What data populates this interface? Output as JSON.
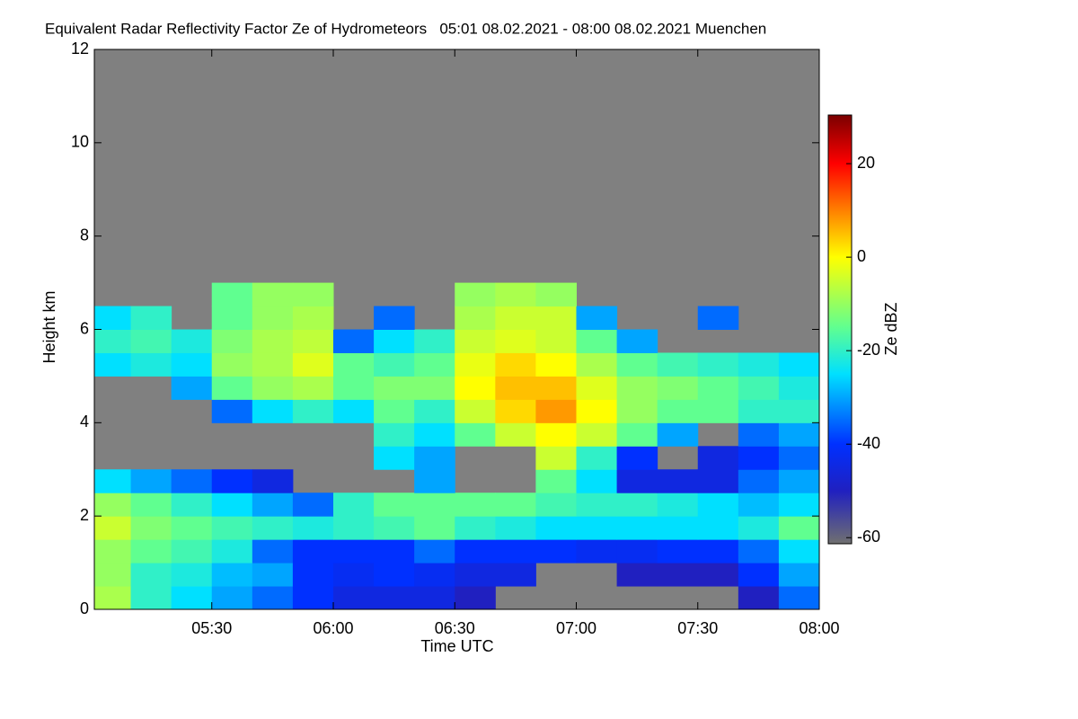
{
  "chart_data": {
    "type": "heatmap",
    "title": "Equivalent Radar Reflectivity Factor Ze of Hydrometeors   05:01 08.02.2021 - 08:00 08.02.2021 Muenchen",
    "xlabel": "Time UTC",
    "ylabel": "Height km",
    "xlim": [
      5.0167,
      8.0
    ],
    "ylim": [
      0,
      12
    ],
    "xticks": [
      {
        "value": 5.5,
        "label": "05:30"
      },
      {
        "value": 6,
        "label": "06:00"
      },
      {
        "value": 6.5,
        "label": "06:30"
      },
      {
        "value": 7,
        "label": "07:00"
      },
      {
        "value": 7.5,
        "label": "07:30"
      },
      {
        "value": 8,
        "label": "08:00"
      }
    ],
    "yticks": [
      0,
      2,
      4,
      6,
      8,
      10,
      12
    ],
    "x_bins": [
      5.0167,
      5.1667,
      5.3333,
      5.5,
      5.6667,
      5.8333,
      6.0,
      6.1667,
      6.3333,
      6.5,
      6.6667,
      6.8333,
      7.0,
      7.1667,
      7.3333,
      7.5,
      7.6667,
      7.8333,
      8.0
    ],
    "y_bins": [
      0,
      0.5,
      1,
      1.5,
      2,
      2.5,
      3,
      3.5,
      4,
      4.5,
      5,
      5.5,
      6,
      6.5,
      7,
      7.5
    ],
    "z": [
      [
        -8,
        -20,
        -25,
        -30,
        -35,
        -40,
        -45,
        -45,
        -45,
        -50,
        null,
        null,
        null,
        null,
        null,
        null,
        -50,
        -35
      ],
      [
        -10,
        -20,
        -22,
        -28,
        -30,
        -40,
        -42,
        -40,
        -42,
        -45,
        -45,
        null,
        null,
        -50,
        -50,
        -50,
        -40,
        -30
      ],
      [
        -10,
        -15,
        -18,
        -22,
        -35,
        -40,
        -40,
        -40,
        -35,
        -40,
        -40,
        -40,
        -42,
        -42,
        -40,
        -40,
        -35,
        -25
      ],
      [
        -5,
        -12,
        -15,
        -18,
        -20,
        -22,
        -20,
        -18,
        -15,
        -20,
        -22,
        -25,
        -25,
        -25,
        -25,
        -25,
        -22,
        -15
      ],
      [
        -10,
        -15,
        -20,
        -25,
        -30,
        -35,
        -20,
        -15,
        -15,
        -15,
        -15,
        -18,
        -20,
        -20,
        -22,
        -25,
        -28,
        -25
      ],
      [
        -25,
        -30,
        -35,
        -40,
        -45,
        null,
        null,
        null,
        -30,
        null,
        null,
        -15,
        -25,
        -45,
        -45,
        -45,
        -35,
        -30
      ],
      [
        null,
        null,
        null,
        null,
        null,
        null,
        null,
        -25,
        -30,
        null,
        null,
        -5,
        -20,
        -40,
        null,
        -45,
        -40,
        -35
      ],
      [
        null,
        null,
        null,
        null,
        null,
        null,
        null,
        -20,
        -25,
        -15,
        -5,
        0,
        -5,
        -15,
        -30,
        null,
        -35,
        -30
      ],
      [
        null,
        null,
        null,
        -35,
        -25,
        -20,
        -25,
        -15,
        -20,
        -5,
        3,
        8,
        0,
        -10,
        -15,
        -15,
        -20,
        -20
      ],
      [
        null,
        null,
        -30,
        -15,
        -10,
        -8,
        -15,
        -12,
        -12,
        0,
        5,
        5,
        -3,
        -10,
        -12,
        -15,
        -18,
        -22
      ],
      [
        -25,
        -22,
        -25,
        -10,
        -8,
        -3,
        -15,
        -18,
        -15,
        -2,
        3,
        0,
        -8,
        -15,
        -18,
        -20,
        -22,
        -25
      ],
      [
        -20,
        -18,
        -22,
        -12,
        -8,
        -6,
        -35,
        -25,
        -20,
        -5,
        -3,
        -5,
        -15,
        -30,
        null,
        null,
        null,
        null
      ],
      [
        -25,
        -20,
        null,
        -15,
        -10,
        -8,
        null,
        -35,
        null,
        -8,
        -5,
        -5,
        -30,
        null,
        null,
        -35,
        null,
        null
      ],
      [
        null,
        null,
        null,
        -15,
        -10,
        -10,
        null,
        null,
        null,
        -10,
        -8,
        -10,
        null,
        null,
        null,
        null,
        null,
        null
      ],
      [
        null,
        null,
        null,
        null,
        null,
        null,
        null,
        null,
        null,
        null,
        null,
        null,
        null,
        null,
        null,
        null,
        null,
        null
      ]
    ],
    "colorbar_label": "Ze dBZ",
    "colorbar_lim": [
      -61.3,
      30.4
    ],
    "colorbar_ticks": [
      -60,
      -40,
      -20,
      0,
      20
    ],
    "colorscale": [
      [
        -62,
        "#707070"
      ],
      [
        -50,
        "#2020c0"
      ],
      [
        -40,
        "#0030ff"
      ],
      [
        -25,
        "#00e0ff"
      ],
      [
        -15,
        "#60ff90"
      ],
      [
        0,
        "#ffff00"
      ],
      [
        10,
        "#ff8000"
      ],
      [
        20,
        "#ff0000"
      ],
      [
        30,
        "#800000"
      ]
    ],
    "background": "#808080"
  }
}
